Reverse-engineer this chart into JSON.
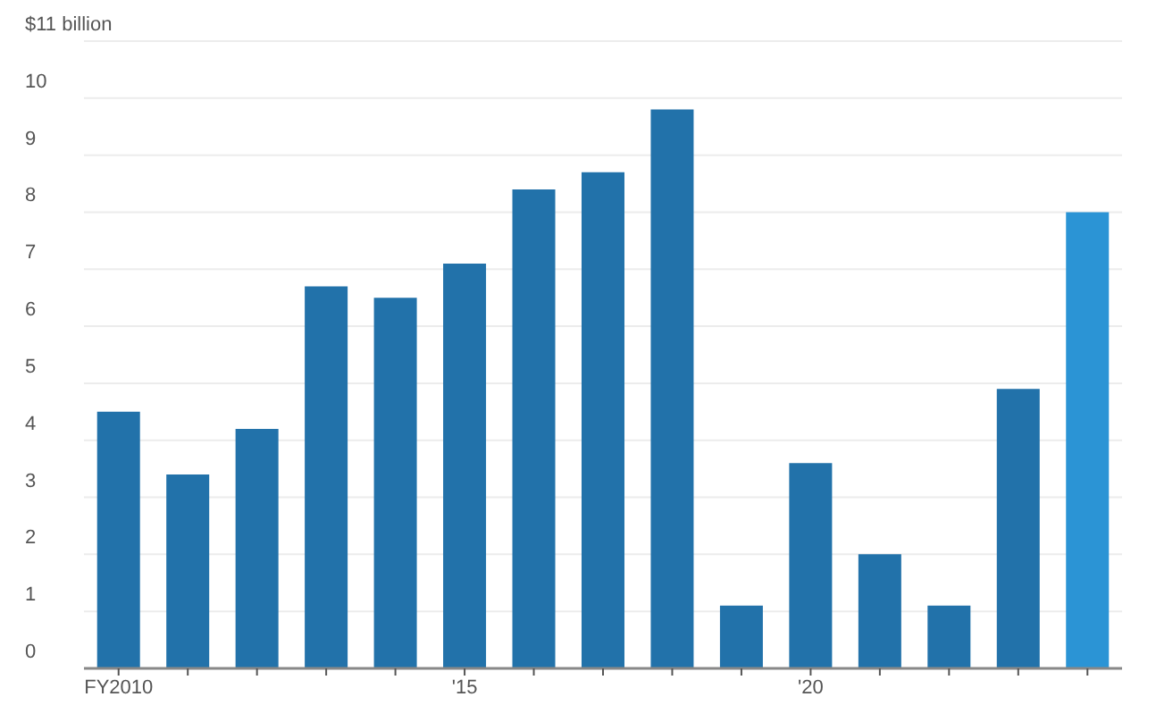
{
  "chart_data": {
    "type": "bar",
    "categories": [
      "FY2010",
      null,
      null,
      null,
      null,
      "'15",
      null,
      null,
      null,
      null,
      "'20",
      null,
      null,
      null,
      null
    ],
    "values": [
      4.5,
      3.4,
      4.2,
      6.7,
      6.5,
      7.1,
      8.4,
      8.7,
      9.8,
      1.1,
      3.6,
      2.0,
      1.1,
      4.9,
      8.0
    ],
    "colors": [
      "#2272aa",
      "#2272aa",
      "#2272aa",
      "#2272aa",
      "#2272aa",
      "#2272aa",
      "#2272aa",
      "#2272aa",
      "#2272aa",
      "#2272aa",
      "#2272aa",
      "#2272aa",
      "#2272aa",
      "#2272aa",
      "#2b94d5"
    ],
    "ylim": [
      0,
      11
    ],
    "yticks": [
      0,
      1,
      2,
      3,
      4,
      5,
      6,
      7,
      8,
      9,
      10,
      {
        "value": 11,
        "label": "$11 billion"
      }
    ],
    "grid": "y",
    "legend": false
  }
}
